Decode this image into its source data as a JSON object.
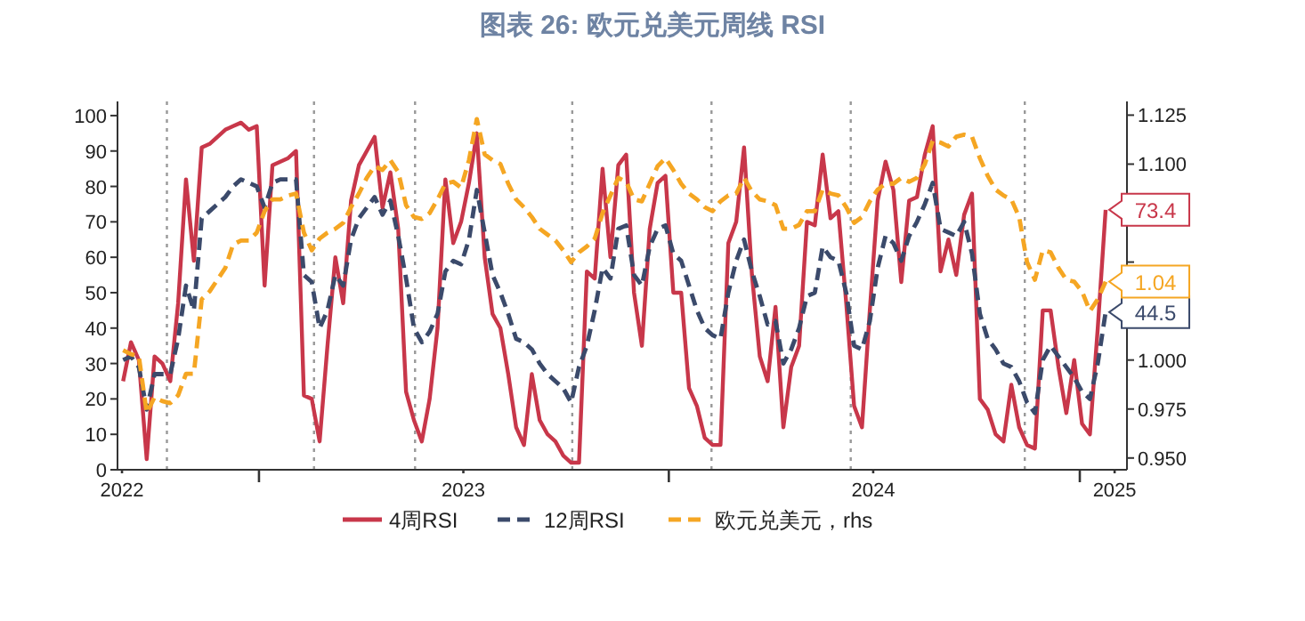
{
  "chart_data": {
    "type": "line",
    "title": "图表 26: 欧元兑美元周线 RSI",
    "x": [
      "2022-09-02",
      "2022-09-09",
      "2022-09-16",
      "2022-09-23",
      "2022-09-30",
      "2022-10-07",
      "2022-10-14",
      "2022-10-21",
      "2022-10-28",
      "2022-11-04",
      "2022-11-11",
      "2022-11-18",
      "2022-11-25",
      "2022-12-02",
      "2022-12-09",
      "2022-12-16",
      "2022-12-23",
      "2022-12-30",
      "2023-01-06",
      "2023-01-13",
      "2023-01-20",
      "2023-01-27",
      "2023-02-03",
      "2023-02-10",
      "2023-02-17",
      "2023-02-24",
      "2023-03-03",
      "2023-03-10",
      "2023-03-17",
      "2023-03-24",
      "2023-03-31",
      "2023-04-07",
      "2023-04-14",
      "2023-04-21",
      "2023-04-28",
      "2023-05-05",
      "2023-05-12",
      "2023-05-19",
      "2023-05-26",
      "2023-06-02",
      "2023-06-09",
      "2023-06-16",
      "2023-06-23",
      "2023-06-30",
      "2023-07-07",
      "2023-07-14",
      "2023-07-21",
      "2023-07-28",
      "2023-08-04",
      "2023-08-11",
      "2023-08-18",
      "2023-08-25",
      "2023-09-01",
      "2023-09-08",
      "2023-09-15",
      "2023-09-22",
      "2023-09-29",
      "2023-10-06",
      "2023-10-13",
      "2023-10-20",
      "2023-10-27",
      "2023-11-03",
      "2023-11-10",
      "2023-11-17",
      "2023-11-24",
      "2023-12-01",
      "2023-12-08",
      "2023-12-15",
      "2023-12-22",
      "2023-12-29",
      "2024-01-05",
      "2024-01-12",
      "2024-01-19",
      "2024-01-26",
      "2024-02-02",
      "2024-02-09",
      "2024-02-16",
      "2024-02-23",
      "2024-03-01",
      "2024-03-08",
      "2024-03-15",
      "2024-03-22",
      "2024-03-29",
      "2024-04-05",
      "2024-04-12",
      "2024-04-19",
      "2024-04-26",
      "2024-05-03",
      "2024-05-10",
      "2024-05-17",
      "2024-05-24",
      "2024-05-31",
      "2024-06-07",
      "2024-06-14",
      "2024-06-21",
      "2024-06-28",
      "2024-07-05",
      "2024-07-12",
      "2024-07-19",
      "2024-07-26",
      "2024-08-02",
      "2024-08-09",
      "2024-08-16",
      "2024-08-23",
      "2024-08-30",
      "2024-09-06",
      "2024-09-13",
      "2024-09-20",
      "2024-09-27",
      "2024-10-04",
      "2024-10-11",
      "2024-10-18",
      "2024-10-25",
      "2024-11-01",
      "2024-11-08",
      "2024-11-15",
      "2024-11-22",
      "2024-11-29",
      "2024-12-06",
      "2024-12-13",
      "2024-12-20",
      "2024-12-27",
      "2025-01-03",
      "2025-01-10",
      "2025-01-17",
      "2025-01-24"
    ],
    "series": [
      {
        "name": "4周RSI",
        "color": "#c8374a",
        "line_style": "solid",
        "values": [
          25,
          36,
          31,
          3,
          32,
          30,
          25,
          47,
          82,
          59,
          91,
          92,
          94,
          96,
          97,
          98,
          96,
          97,
          52,
          86,
          87,
          88,
          90,
          21,
          20,
          8,
          35,
          60,
          47,
          76,
          86,
          90,
          94,
          74,
          84,
          68,
          22,
          14,
          8,
          20,
          40,
          82,
          64,
          70,
          81,
          95,
          60,
          44,
          40,
          27,
          12,
          7,
          27,
          14,
          10,
          8,
          4,
          2,
          2,
          56,
          54,
          85,
          60,
          86,
          89,
          50,
          35,
          68,
          81,
          83,
          50,
          50,
          23,
          18,
          9,
          7,
          7,
          64,
          70,
          91,
          55,
          32,
          25,
          46,
          12,
          29,
          35,
          70,
          69,
          89,
          71,
          73,
          47,
          18,
          12,
          45,
          76,
          87,
          79,
          53,
          76,
          77,
          89,
          97,
          56,
          65,
          55,
          72,
          78,
          20,
          17,
          10,
          8,
          24,
          12,
          7,
          6,
          45,
          45,
          29,
          16,
          31,
          13,
          10,
          40,
          73.4
        ],
        "value_labels": [
          null,
          null,
          null,
          null,
          null,
          null,
          null,
          null,
          null,
          null,
          null,
          null,
          null,
          null,
          null,
          null,
          null,
          null,
          null,
          null,
          null,
          null,
          null,
          null,
          null,
          null,
          null,
          null,
          null,
          null,
          null,
          null,
          null,
          null,
          null,
          null,
          null,
          null,
          null,
          null,
          null,
          null,
          null,
          null,
          null,
          null,
          null,
          null,
          null,
          null,
          null,
          null,
          null,
          null,
          null,
          null,
          null,
          null,
          null,
          null,
          null,
          null,
          null,
          null,
          null,
          null,
          null,
          null,
          null,
          null,
          null,
          null,
          null,
          null,
          null,
          null,
          null,
          null,
          null,
          null,
          null,
          null,
          null,
          null,
          null,
          null,
          null,
          null,
          null,
          null,
          null,
          null,
          null,
          null,
          null,
          null,
          null,
          null,
          null,
          null,
          null,
          null,
          null,
          null,
          null,
          null,
          null,
          null,
          null,
          null,
          null,
          null,
          null,
          null,
          null,
          null,
          null,
          null,
          null,
          null,
          null,
          null,
          null,
          null,
          null,
          "73.4"
        ]
      },
      {
        "name": "12周RSI",
        "color": "#3b4a6b",
        "line_style": "dashed",
        "values": [
          31,
          32,
          29,
          17,
          27,
          27,
          27,
          37,
          52,
          45,
          71,
          73,
          75,
          77,
          80,
          82,
          81,
          80,
          74,
          81,
          82,
          82,
          82,
          55,
          53,
          40,
          45,
          55,
          52,
          65,
          71,
          74,
          77,
          72,
          76,
          66,
          54,
          40,
          36,
          39,
          44,
          56,
          59,
          58,
          65,
          79,
          67,
          55,
          50,
          44,
          37,
          36,
          34,
          30,
          27,
          25,
          23,
          19,
          29,
          35,
          45,
          57,
          54,
          68,
          69,
          55,
          52,
          63,
          68,
          69,
          61,
          59,
          52,
          45,
          40,
          38,
          37,
          50,
          59,
          65,
          56,
          49,
          41,
          42,
          30,
          34,
          40,
          49,
          50,
          63,
          60,
          59,
          50,
          35,
          34,
          42,
          57,
          66,
          64,
          59,
          66,
          70,
          75,
          81,
          68,
          67,
          66,
          70,
          61,
          44,
          37,
          34,
          30,
          29,
          25,
          19,
          16,
          31,
          35,
          32,
          29,
          26,
          22,
          20,
          30,
          44.5
        ],
        "value_labels": [
          null,
          null,
          null,
          null,
          null,
          null,
          null,
          null,
          null,
          null,
          null,
          null,
          null,
          null,
          null,
          null,
          null,
          null,
          null,
          null,
          null,
          null,
          null,
          null,
          null,
          null,
          null,
          null,
          null,
          null,
          null,
          null,
          null,
          null,
          null,
          null,
          null,
          null,
          null,
          null,
          null,
          null,
          null,
          null,
          null,
          null,
          null,
          null,
          null,
          null,
          null,
          null,
          null,
          null,
          null,
          null,
          null,
          null,
          null,
          null,
          null,
          null,
          null,
          null,
          null,
          null,
          null,
          null,
          null,
          null,
          null,
          null,
          null,
          null,
          null,
          null,
          null,
          null,
          null,
          null,
          null,
          null,
          null,
          null,
          null,
          null,
          null,
          null,
          null,
          null,
          null,
          null,
          null,
          null,
          null,
          null,
          null,
          null,
          null,
          null,
          null,
          null,
          null,
          null,
          null,
          null,
          null,
          null,
          null,
          null,
          null,
          null,
          null,
          null,
          null,
          null,
          null,
          null,
          null,
          null,
          null,
          null,
          null,
          null,
          null,
          "44.5"
        ]
      },
      {
        "name": "欧元兑美元，rhs",
        "color": "#f5a623",
        "line_style": "dashed",
        "axis": "y2",
        "values": [
          1.005,
          1.003,
          1.002,
          0.973,
          0.981,
          0.979,
          0.978,
          0.982,
          0.993,
          0.993,
          1.031,
          1.035,
          1.041,
          1.047,
          1.059,
          1.061,
          1.061,
          1.065,
          1.076,
          1.082,
          1.082,
          1.084,
          1.085,
          1.065,
          1.056,
          1.062,
          1.065,
          1.067,
          1.07,
          1.078,
          1.085,
          1.093,
          1.099,
          1.097,
          1.102,
          1.096,
          1.079,
          1.073,
          1.072,
          1.075,
          1.082,
          1.09,
          1.091,
          1.088,
          1.102,
          1.123,
          1.105,
          1.102,
          1.1,
          1.09,
          1.082,
          1.078,
          1.073,
          1.067,
          1.064,
          1.061,
          1.056,
          1.05,
          1.055,
          1.058,
          1.062,
          1.075,
          1.084,
          1.093,
          1.091,
          1.082,
          1.081,
          1.09,
          1.099,
          1.103,
          1.097,
          1.09,
          1.085,
          1.082,
          1.078,
          1.076,
          1.081,
          1.084,
          1.085,
          1.093,
          1.086,
          1.082,
          1.081,
          1.079,
          1.067,
          1.067,
          1.069,
          1.076,
          1.076,
          1.087,
          1.085,
          1.084,
          1.078,
          1.07,
          1.073,
          1.081,
          1.087,
          1.09,
          1.09,
          1.093,
          1.091,
          1.093,
          1.1,
          1.112,
          1.111,
          1.109,
          1.114,
          1.115,
          1.114,
          1.103,
          1.094,
          1.087,
          1.084,
          1.082,
          1.073,
          1.05,
          1.041,
          1.056,
          1.055,
          1.047,
          1.041,
          1.04,
          1.035,
          1.025,
          1.031,
          1.04
        ],
        "value_labels": [
          null,
          null,
          null,
          null,
          null,
          null,
          null,
          null,
          null,
          null,
          null,
          null,
          null,
          null,
          null,
          null,
          null,
          null,
          null,
          null,
          null,
          null,
          null,
          null,
          null,
          null,
          null,
          null,
          null,
          null,
          null,
          null,
          null,
          null,
          null,
          null,
          null,
          null,
          null,
          null,
          null,
          null,
          null,
          null,
          null,
          null,
          null,
          null,
          null,
          null,
          null,
          null,
          null,
          null,
          null,
          null,
          null,
          null,
          null,
          null,
          null,
          null,
          null,
          null,
          null,
          null,
          null,
          null,
          null,
          null,
          null,
          null,
          null,
          null,
          null,
          null,
          null,
          null,
          null,
          null,
          null,
          null,
          null,
          null,
          null,
          null,
          null,
          null,
          null,
          null,
          null,
          null,
          null,
          null,
          null,
          null,
          null,
          null,
          null,
          null,
          null,
          null,
          null,
          null,
          null,
          null,
          null,
          null,
          null,
          null,
          null,
          null,
          null,
          null,
          null,
          null,
          null,
          null,
          null,
          null,
          null,
          null,
          null,
          null,
          null,
          "1.04"
        ]
      }
    ],
    "xlim": [
      "2022-08-28",
      "2025-02-12"
    ],
    "xticks": [
      {
        "value": "2022-09-01",
        "label": "2022"
      },
      {
        "value": "2023-01-01",
        "label": null
      },
      {
        "value": "2023-07-02",
        "label": "2023"
      },
      {
        "value": "2024-01-01",
        "label": null
      },
      {
        "value": "2024-07-01",
        "label": "2024"
      },
      {
        "value": "2025-01-01",
        "label": null
      },
      {
        "value": "2025-02-01",
        "label": "2025"
      }
    ],
    "ylim": [
      0,
      104
    ],
    "yticks": [
      0,
      10,
      20,
      30,
      40,
      50,
      60,
      70,
      80,
      90,
      100
    ],
    "y2lim": [
      0.944,
      1.132
    ],
    "y2ticks": [
      {
        "value": 0.95,
        "label": "0.950"
      },
      {
        "value": 0.975,
        "label": "0.975"
      },
      {
        "value": 1.0,
        "label": "1.000"
      },
      {
        "value": 1.025,
        "label": null
      },
      {
        "value": 1.05,
        "label": null
      },
      {
        "value": 1.075,
        "label": null
      },
      {
        "value": 1.1,
        "label": "1.100"
      },
      {
        "value": 1.125,
        "label": "1.125"
      }
    ],
    "ref_lines": [
      {
        "axis": "x",
        "value": "2022-10-11",
        "color": "#999999",
        "line_style": "dotted"
      },
      {
        "axis": "x",
        "value": "2023-02-19",
        "color": "#999999",
        "line_style": "dotted"
      },
      {
        "axis": "x",
        "value": "2023-05-20",
        "color": "#999999",
        "line_style": "dotted"
      },
      {
        "axis": "x",
        "value": "2023-10-07",
        "color": "#999999",
        "line_style": "dotted"
      },
      {
        "axis": "x",
        "value": "2024-02-08",
        "color": "#999999",
        "line_style": "dotted"
      },
      {
        "axis": "x",
        "value": "2024-06-11",
        "color": "#999999",
        "line_style": "dotted"
      },
      {
        "axis": "x",
        "value": "2024-11-13",
        "color": "#999999",
        "line_style": "dotted"
      }
    ],
    "grid": false,
    "legend": "bottom",
    "marker": "none"
  }
}
